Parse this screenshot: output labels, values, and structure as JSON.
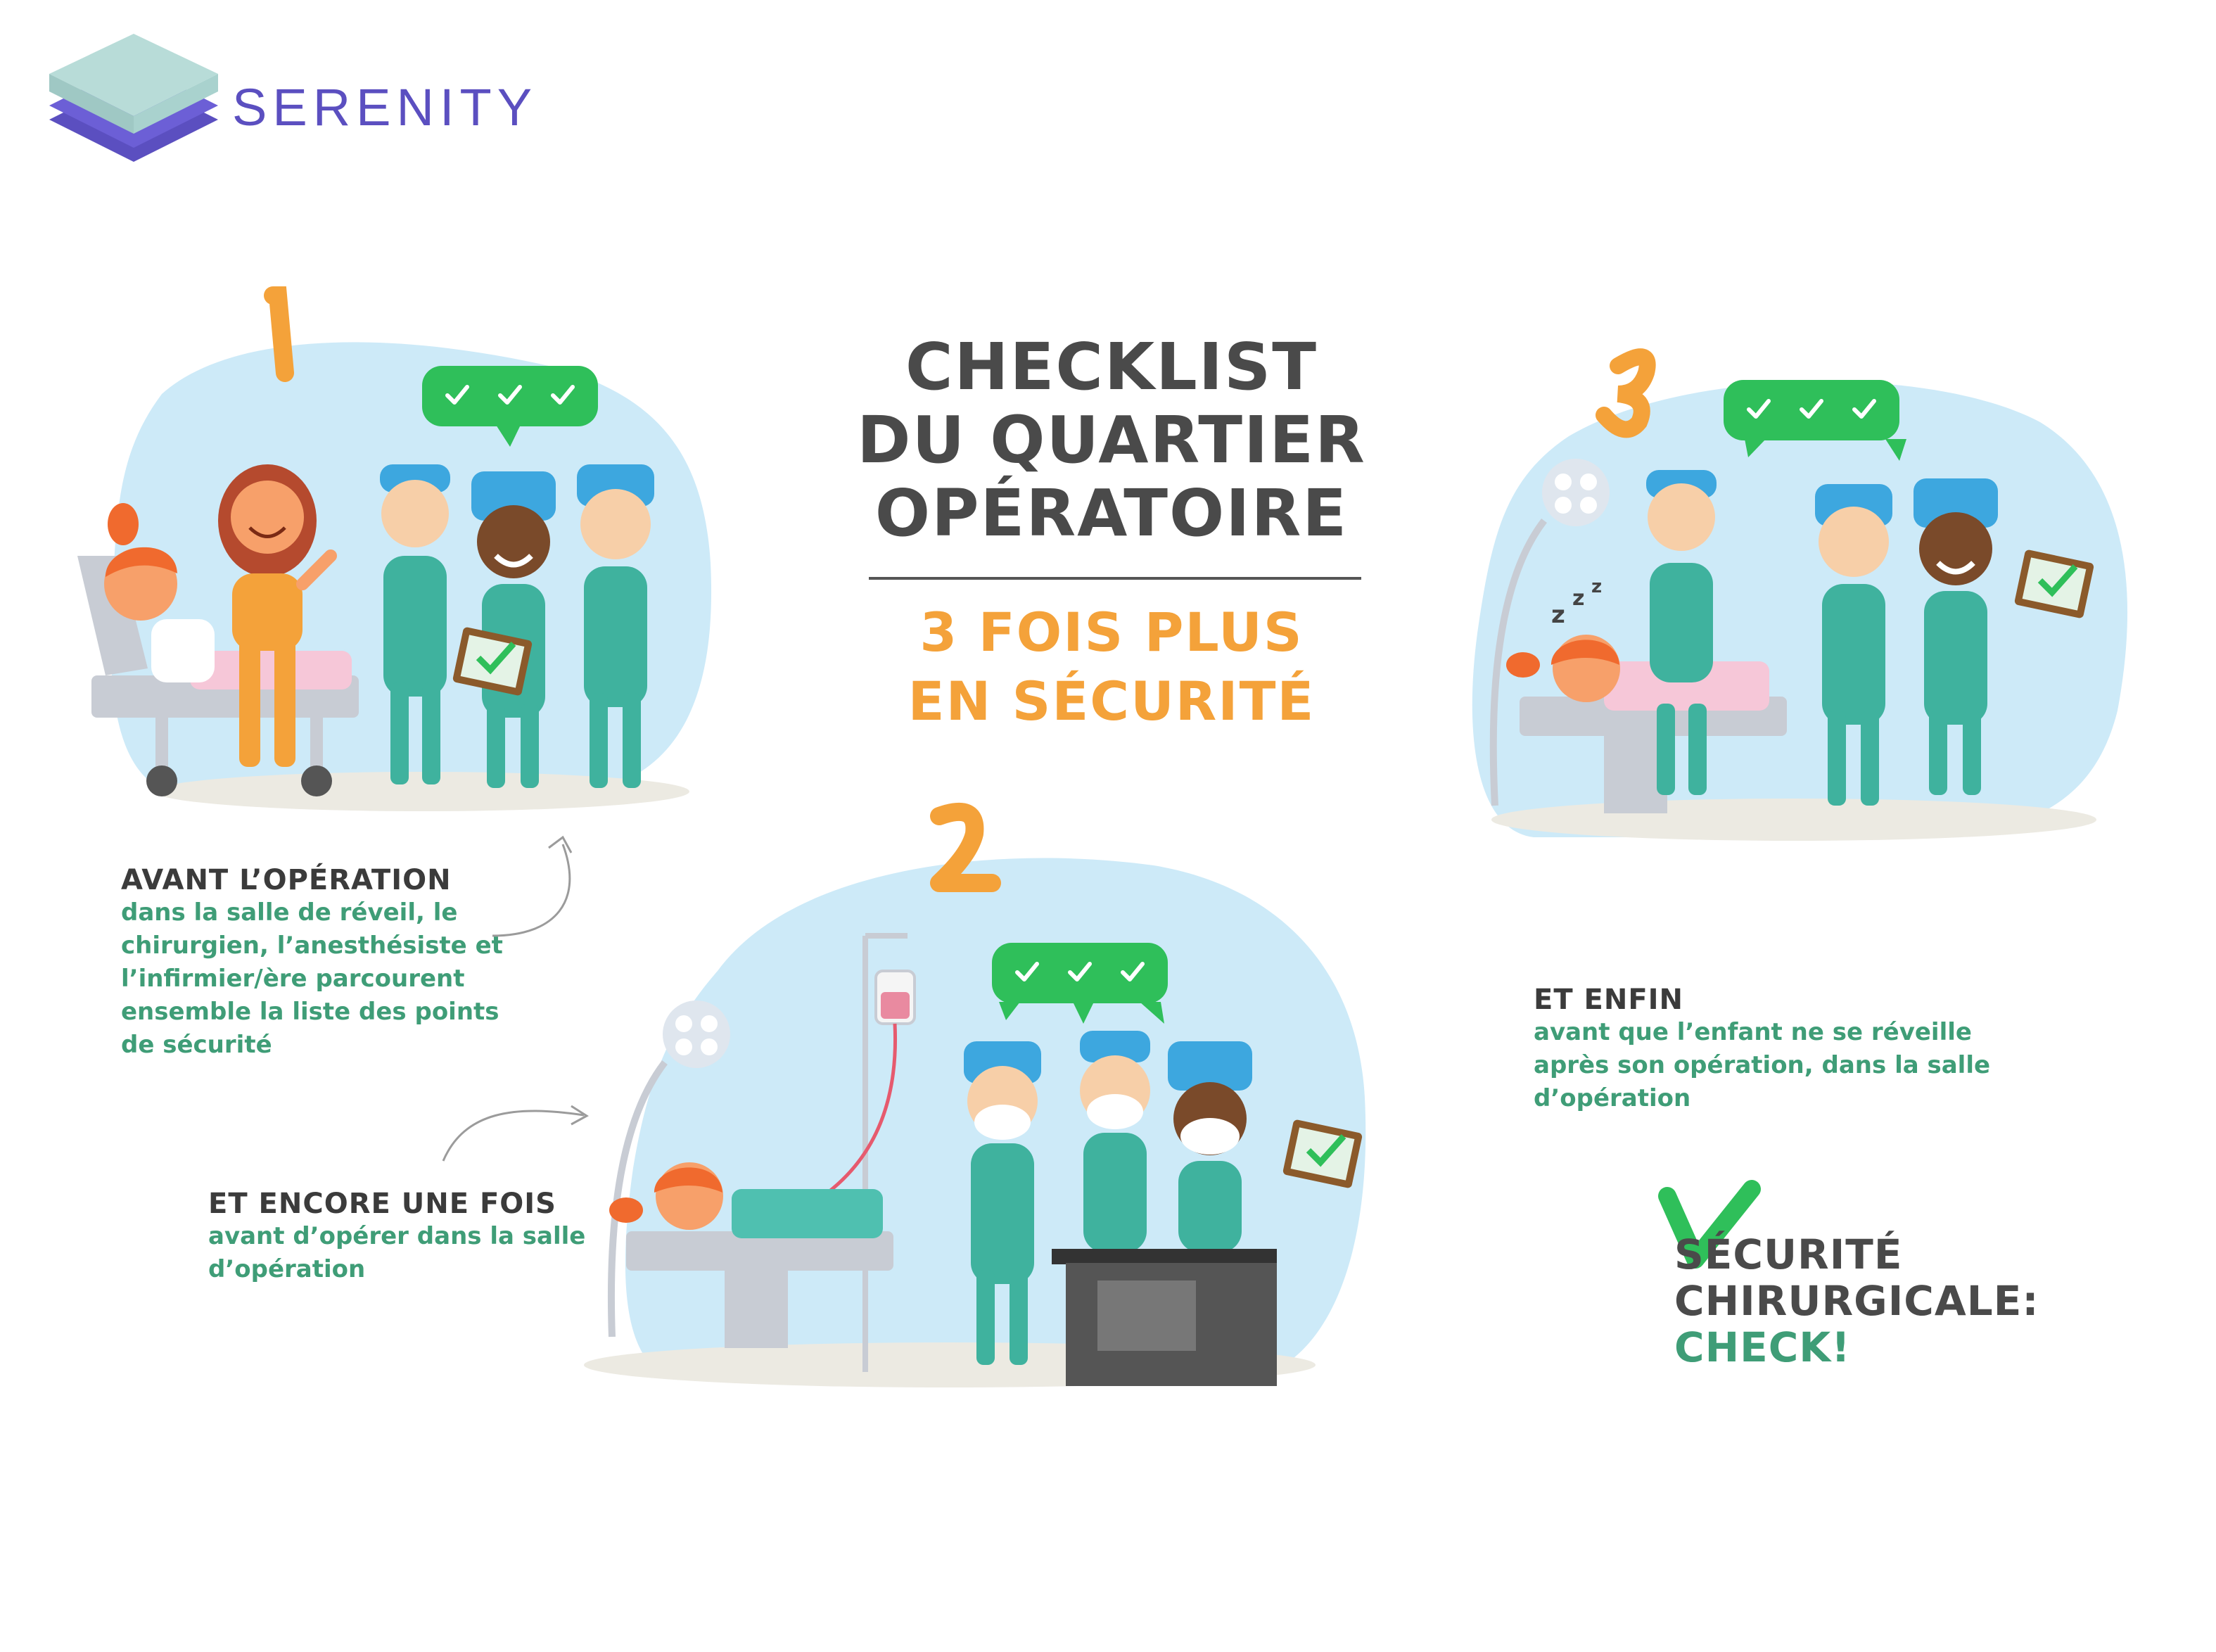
{
  "brand": {
    "name": "SERENITY"
  },
  "title": {
    "line1": "CHECKLIST",
    "line2": "DU QUARTIER",
    "line3": "OPÉRATOIRE"
  },
  "subtitle": {
    "line1": "3 FOIS PLUS",
    "line2": "EN SÉCURITÉ"
  },
  "steps": [
    {
      "number": "1",
      "heading": "AVANT L’OPÉRATION",
      "body": [
        "dans la salle de réveil, le",
        "chirurgien, l’anesthésiste et",
        "l’infirmier/ère parcourent",
        "ensemble la liste des points",
        "de sécurité"
      ]
    },
    {
      "number": "2",
      "heading": "ET ENCORE UNE FOIS",
      "body": [
        "avant d’opérer dans la salle",
        "d’opération"
      ]
    },
    {
      "number": "3",
      "heading": "ET ENFIN",
      "body": [
        "avant que l’enfant ne se réveille",
        "après son opération, dans la salle",
        "d’opération"
      ]
    }
  ],
  "final": {
    "line1": "SÉCURITÉ",
    "line2": "CHIRURGICALE:",
    "line3": "CHECK!"
  },
  "colors": {
    "brand": "#5b4fc0",
    "orange": "#f4a23a",
    "green": "#3f9d77",
    "check_green": "#2fbf5a",
    "blob": "#cdeaf8",
    "scrubs": "#3fb29e",
    "cap": "#3da7df",
    "text_dark": "#4a4a4a"
  },
  "icons": [
    "layers-logo-icon",
    "check-icon",
    "speech-bubble-icon",
    "surgical-lamp-icon",
    "iv-bag-icon",
    "clipboard-icon",
    "arrow-icon"
  ]
}
